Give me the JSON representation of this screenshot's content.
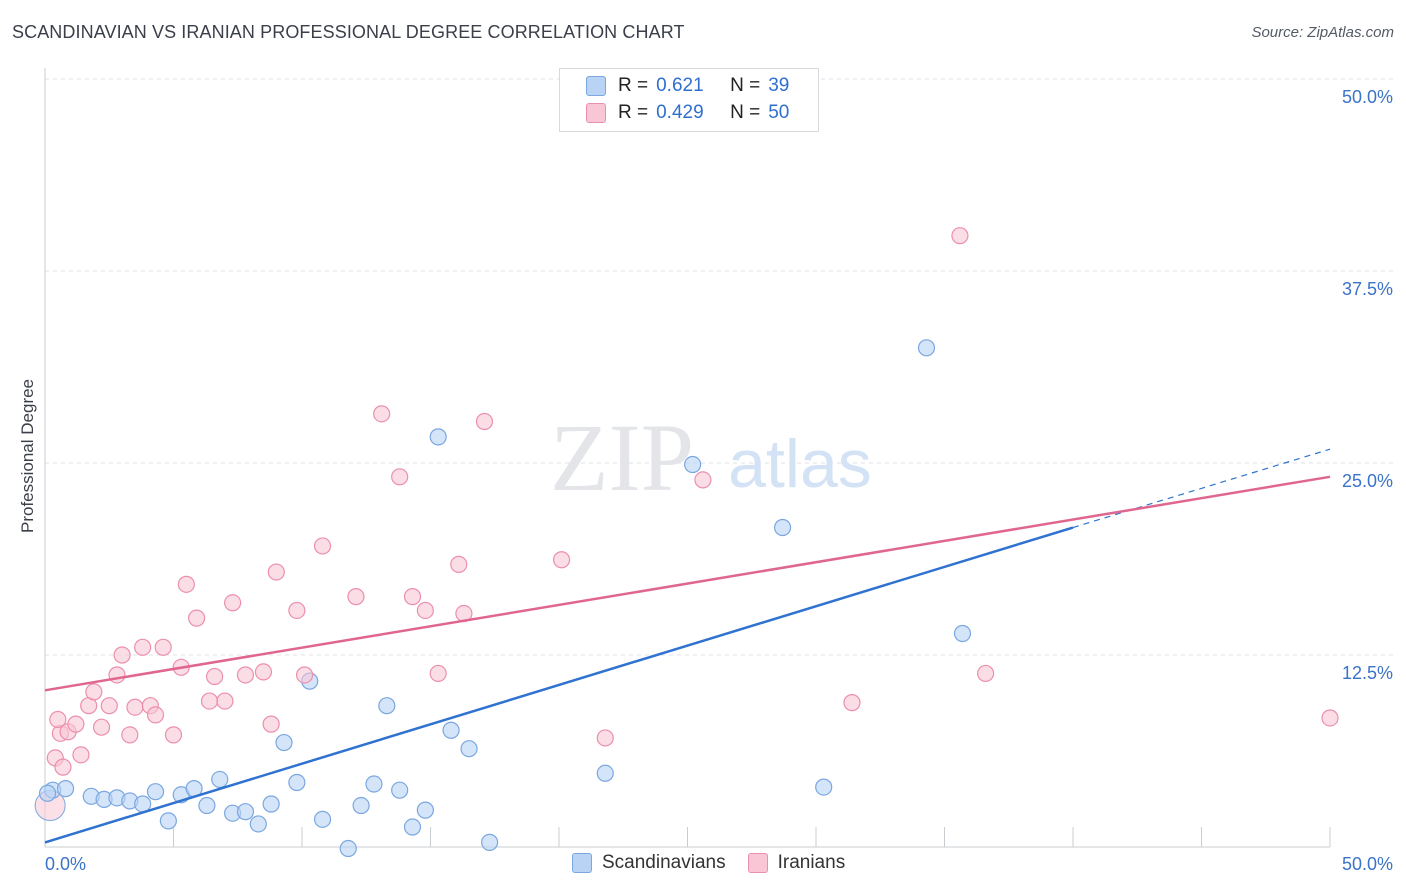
{
  "header": {
    "title": "SCANDINAVIAN VS IRANIAN PROFESSIONAL DEGREE CORRELATION CHART",
    "source": "Source: ZipAtlas.com"
  },
  "watermark": {
    "zip": "ZIP",
    "atlas": "atlas"
  },
  "legend_stats": [
    {
      "r_label": "R =",
      "r_value": "0.621",
      "n_label": "N =",
      "n_value": "39"
    },
    {
      "r_label": "R =",
      "r_value": "0.429",
      "n_label": "N =",
      "n_value": "50"
    }
  ],
  "colors": {
    "scandinavians_fill": "#b9d3f5",
    "scandinavians_stroke": "#7aa7e0",
    "scandinavians_line": "#2f72d0",
    "iranians_fill": "#f9c6d6",
    "iranians_stroke": "#eb8fae",
    "iranians_line": "#e0668f",
    "tick_label": "#3a73c8",
    "grid": "#dde0e5"
  },
  "chart_data": {
    "type": "scatter",
    "title": "SCANDINAVIAN VS IRANIAN PROFESSIONAL DEGREE CORRELATION CHART",
    "xlabel": "",
    "ylabel": "Professional Degree",
    "xlim": [
      0,
      50
    ],
    "ylim": [
      0,
      50
    ],
    "x_tick_labels": [
      "0.0%",
      "50.0%"
    ],
    "y_tick_labels": [
      "12.5%",
      "25.0%",
      "37.5%",
      "50.0%"
    ],
    "y_ticks": [
      12.5,
      25.0,
      37.5,
      50.0
    ],
    "grid": "horizontal dashed",
    "legend_position": "top-center and bottom-center",
    "series": [
      {
        "name": "Scandinavians",
        "r": 0.621,
        "n": 39,
        "points": [
          [
            0.3,
            3.7
          ],
          [
            0.8,
            3.8
          ],
          [
            1.8,
            3.3
          ],
          [
            2.3,
            3.1
          ],
          [
            2.8,
            3.2
          ],
          [
            3.3,
            3.0
          ],
          [
            3.8,
            2.8
          ],
          [
            4.3,
            3.6
          ],
          [
            4.8,
            1.7
          ],
          [
            5.3,
            3.4
          ],
          [
            5.8,
            3.8
          ],
          [
            6.3,
            2.7
          ],
          [
            6.8,
            4.4
          ],
          [
            7.3,
            2.2
          ],
          [
            7.8,
            2.3
          ],
          [
            8.3,
            1.5
          ],
          [
            8.8,
            2.8
          ],
          [
            9.3,
            6.8
          ],
          [
            9.8,
            4.2
          ],
          [
            10.3,
            10.8
          ],
          [
            10.8,
            1.8
          ],
          [
            11.8,
            -0.1
          ],
          [
            12.3,
            2.7
          ],
          [
            12.8,
            4.1
          ],
          [
            13.3,
            9.2
          ],
          [
            13.8,
            3.7
          ],
          [
            14.3,
            1.3
          ],
          [
            14.8,
            2.4
          ],
          [
            15.3,
            26.7
          ],
          [
            15.8,
            7.6
          ],
          [
            16.5,
            6.4
          ],
          [
            17.3,
            0.3
          ],
          [
            21.8,
            4.8
          ],
          [
            25.2,
            24.9
          ],
          [
            28.7,
            20.8
          ],
          [
            30.3,
            3.9
          ],
          [
            34.3,
            32.5
          ],
          [
            35.7,
            13.9
          ],
          [
            0.1,
            3.5
          ]
        ],
        "trend": {
          "x": [
            0,
            40
          ],
          "y": [
            0.3,
            20.8
          ],
          "dashed_extension": {
            "x": [
              40,
              50
            ],
            "y": [
              20.8,
              25.9
            ]
          }
        }
      },
      {
        "name": "Iranians",
        "r": 0.429,
        "n": 50,
        "points": [
          [
            0.4,
            5.8
          ],
          [
            0.6,
            7.4
          ],
          [
            0.9,
            7.5
          ],
          [
            1.2,
            8.0
          ],
          [
            1.4,
            6.0
          ],
          [
            1.7,
            9.2
          ],
          [
            1.9,
            10.1
          ],
          [
            2.2,
            7.8
          ],
          [
            2.5,
            9.2
          ],
          [
            2.8,
            11.2
          ],
          [
            3.0,
            12.5
          ],
          [
            3.3,
            7.3
          ],
          [
            3.5,
            9.1
          ],
          [
            3.8,
            13.0
          ],
          [
            4.1,
            9.2
          ],
          [
            4.3,
            8.6
          ],
          [
            4.6,
            13.0
          ],
          [
            5.0,
            7.3
          ],
          [
            5.3,
            11.7
          ],
          [
            5.5,
            17.1
          ],
          [
            5.9,
            14.9
          ],
          [
            6.4,
            9.5
          ],
          [
            6.6,
            11.1
          ],
          [
            7.0,
            9.5
          ],
          [
            7.3,
            15.9
          ],
          [
            7.8,
            11.2
          ],
          [
            8.5,
            11.4
          ],
          [
            8.8,
            8.0
          ],
          [
            9.0,
            17.9
          ],
          [
            9.8,
            15.4
          ],
          [
            10.1,
            11.2
          ],
          [
            10.8,
            19.6
          ],
          [
            12.1,
            16.3
          ],
          [
            13.1,
            28.2
          ],
          [
            13.8,
            24.1
          ],
          [
            14.3,
            16.3
          ],
          [
            14.8,
            15.4
          ],
          [
            15.3,
            11.3
          ],
          [
            16.1,
            18.4
          ],
          [
            16.3,
            15.2
          ],
          [
            17.1,
            27.7
          ],
          [
            20.1,
            18.7
          ],
          [
            21.8,
            7.1
          ],
          [
            25.6,
            23.9
          ],
          [
            31.4,
            9.4
          ],
          [
            35.6,
            39.8
          ],
          [
            36.6,
            11.3
          ],
          [
            50.0,
            8.4
          ],
          [
            0.5,
            8.3
          ],
          [
            0.7,
            5.2
          ]
        ],
        "trend": {
          "x": [
            0,
            50
          ],
          "y": [
            10.2,
            24.1
          ]
        }
      }
    ]
  },
  "bottom_legend": [
    "Scandinavians",
    "Iranians"
  ]
}
